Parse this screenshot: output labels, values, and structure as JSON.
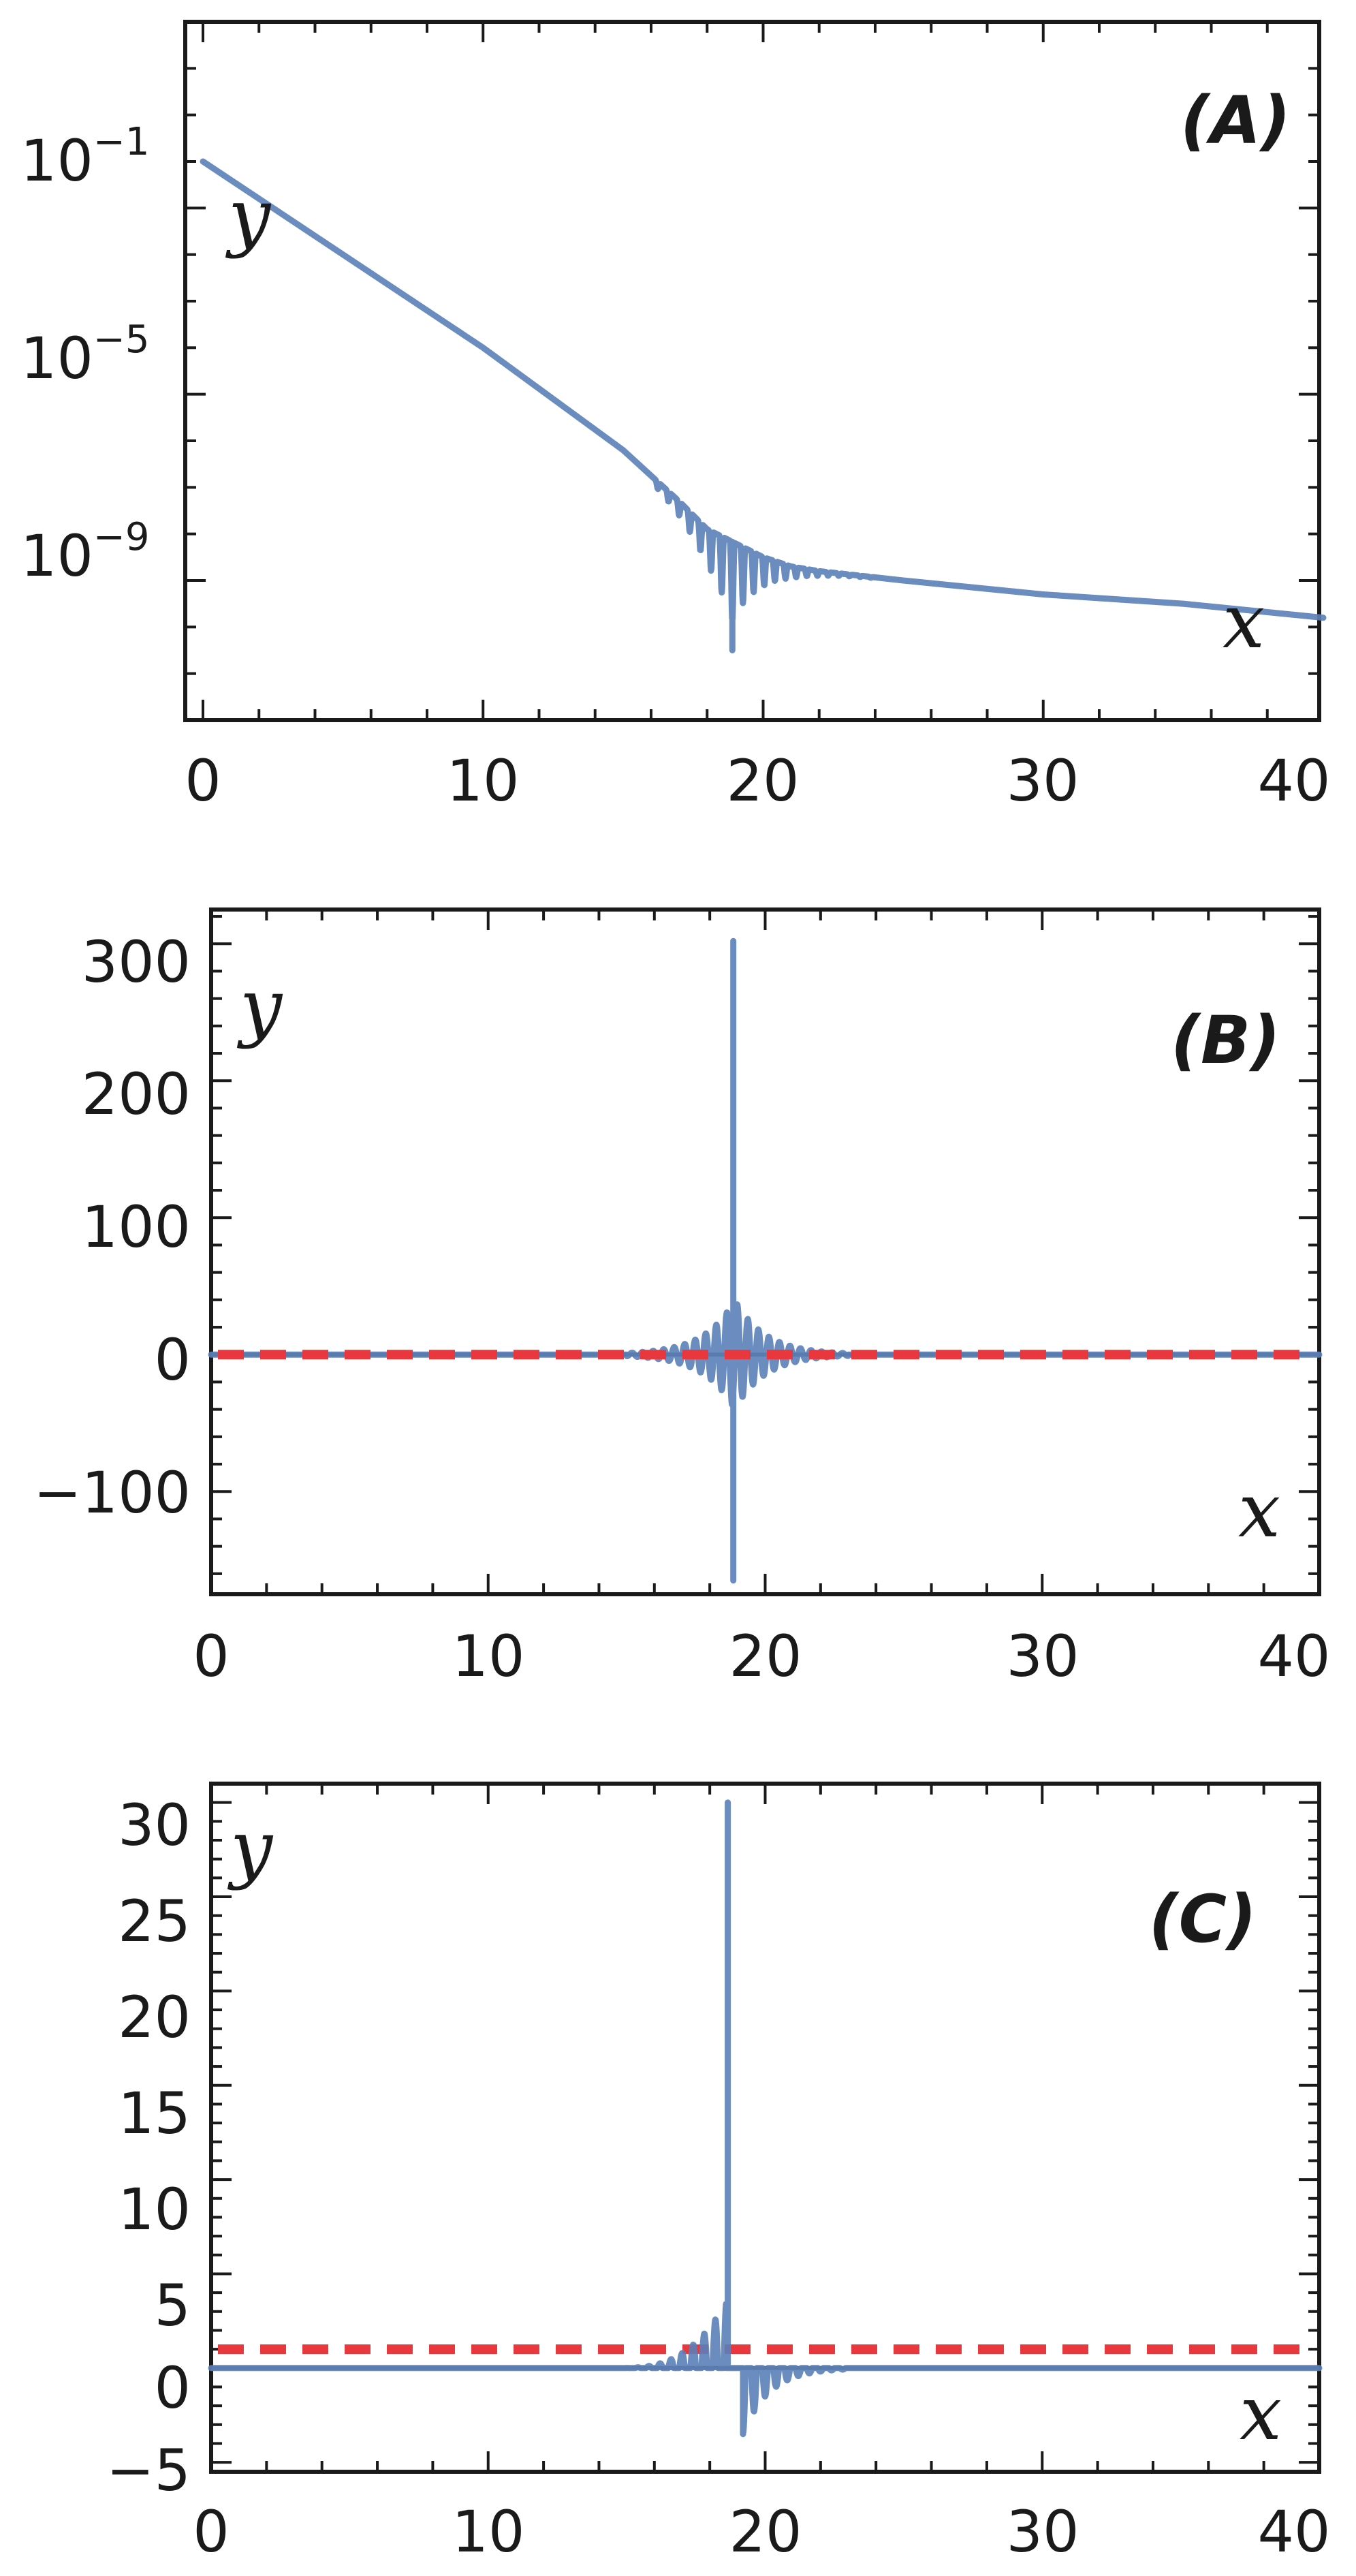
{
  "chart_data": [
    {
      "type": "line",
      "panel_label": "(A)",
      "xlabel": "x",
      "ylabel": "y",
      "xlim": [
        0,
        40
      ],
      "ylim_log10": [
        -12,
        3
      ],
      "yscale": "log",
      "x_ticks": [
        0,
        10,
        20,
        30,
        40
      ],
      "x_tick_labels": [
        "0",
        "10",
        "20",
        "30",
        "40"
      ],
      "y_ticks_log10": [
        -1,
        -5,
        -9
      ],
      "y_tick_bases": [
        "10",
        "10",
        "10"
      ],
      "y_tick_exponents": [
        "−1",
        "−5",
        "−9"
      ],
      "series": [
        {
          "color": "#5b7fb8",
          "envelope": {
            "x": [
              0,
              5,
              10,
              15,
              17,
              18,
              19,
              20,
              21,
              22,
              25,
              30,
              35,
              40
            ],
            "log10y": [
              0,
              -2.0,
              -4.0,
              -6.2,
              -7.3,
              -7.9,
              -8.2,
              -8.5,
              -8.7,
              -8.8,
              -9.0,
              -9.3,
              -9.5,
              -9.8
            ]
          },
          "oscillation": {
            "start": 16.0,
            "end": 24.0,
            "center": 18.9,
            "period": 0.38,
            "min_log10": -10.5,
            "spike_x": 18.9
          }
        }
      ]
    },
    {
      "type": "line",
      "panel_label": "(B)",
      "xlabel": "x",
      "ylabel": "y",
      "xlim": [
        0,
        40
      ],
      "ylim": [
        -175,
        325
      ],
      "x_ticks": [
        0,
        10,
        20,
        30,
        40
      ],
      "x_tick_labels": [
        "0",
        "10",
        "20",
        "30",
        "40"
      ],
      "y_ticks": [
        300,
        200,
        100,
        0,
        -100
      ],
      "y_tick_labels": [
        "300",
        "200",
        "100",
        "0",
        "−100"
      ],
      "reference_line": {
        "y": 0,
        "style": "dashed",
        "color": "#e8383d"
      },
      "zero_line": {
        "y": 0,
        "color": "#555555"
      },
      "series": [
        {
          "color": "#5b7fb8",
          "oscillation": {
            "start": 15.0,
            "end": 23.0,
            "center": 18.9,
            "period": 0.38,
            "amp_peak": 40,
            "decay": 1.1
          },
          "spike": {
            "x": 18.85,
            "max": 302,
            "min": -165
          }
        }
      ]
    },
    {
      "type": "line",
      "panel_label": "(C)",
      "xlabel": "x",
      "ylabel": "y",
      "xlim": [
        0,
        40
      ],
      "ylim": [
        -5.5,
        31
      ],
      "x_ticks": [
        0,
        10,
        20,
        30,
        40
      ],
      "x_tick_labels": [
        "0",
        "10",
        "20",
        "30",
        "40"
      ],
      "y_ticks": [
        30,
        25,
        20,
        15,
        10,
        5,
        0,
        -5
      ],
      "y_tick_labels": [
        "30",
        "25",
        "20",
        "15",
        "10",
        "5",
        "0",
        "−5"
      ],
      "reference_line": {
        "y": 1.0,
        "style": "dashed",
        "color": "#e8383d"
      },
      "zero_line": {
        "y": 0,
        "color": "#555555"
      },
      "series": [
        {
          "color": "#5b7fb8",
          "left_ramp": {
            "start": 14.5,
            "end": 18.6,
            "max": 3.5,
            "period": 0.4
          },
          "spike": {
            "x": 18.65,
            "max": 30
          },
          "right_tail": {
            "start": 19.2,
            "end": 23.0,
            "min": -3.5,
            "period": 0.4
          }
        }
      ]
    }
  ]
}
